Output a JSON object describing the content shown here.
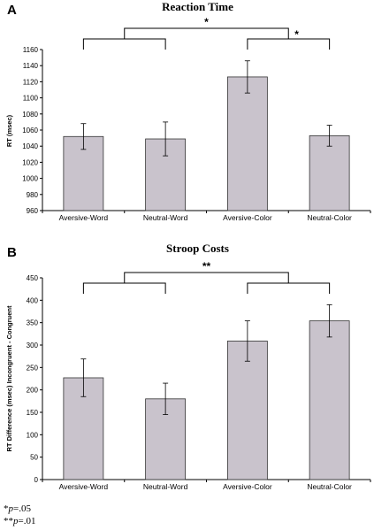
{
  "chart_data": [
    {
      "type": "bar",
      "panel": "A",
      "title": "Reaction Time",
      "ylabel": "RT (msec)",
      "xlabel": "",
      "categories": [
        "Aversive-Word",
        "Neutral-Word",
        "Aversive-Color",
        "Neutral-Color"
      ],
      "values": [
        1052,
        1049,
        1126,
        1053
      ],
      "errors": [
        16,
        21,
        20,
        13
      ],
      "ylim": [
        960,
        1160
      ],
      "yticks": [
        960,
        980,
        1000,
        1020,
        1040,
        1060,
        1080,
        1100,
        1120,
        1140,
        1160
      ],
      "grid": false,
      "annotations": [
        {
          "label": "*",
          "type": "bracket",
          "between": [
            "Aversive-Word/Neutral-Word",
            "Aversive-Color/Neutral-Color"
          ]
        },
        {
          "label": "*",
          "type": "bracket",
          "between": [
            "Aversive-Color",
            "Neutral-Color"
          ]
        }
      ]
    },
    {
      "type": "bar",
      "panel": "B",
      "title": "Stroop  Costs",
      "ylabel": "RT Difference (msec) Incongruent - Congruent",
      "xlabel": "",
      "categories": [
        "Aversive-Word",
        "Neutral-Word",
        "Aversive-Color",
        "Neutral-Color"
      ],
      "values": [
        227,
        180,
        309,
        354
      ],
      "errors": [
        42,
        35,
        45,
        36
      ],
      "ylim": [
        0,
        450
      ],
      "yticks": [
        0,
        50,
        100,
        150,
        200,
        250,
        300,
        350,
        400,
        450
      ],
      "grid": false,
      "annotations": [
        {
          "label": "**",
          "type": "bracket",
          "between": [
            "Aversive-Word/Neutral-Word",
            "Aversive-Color/Neutral-Color"
          ]
        }
      ]
    }
  ],
  "footnotes": [
    {
      "stars": "*",
      "p": "p",
      "rest": "=.05"
    },
    {
      "stars": "**",
      "p": "p",
      "rest": "=.01"
    }
  ]
}
